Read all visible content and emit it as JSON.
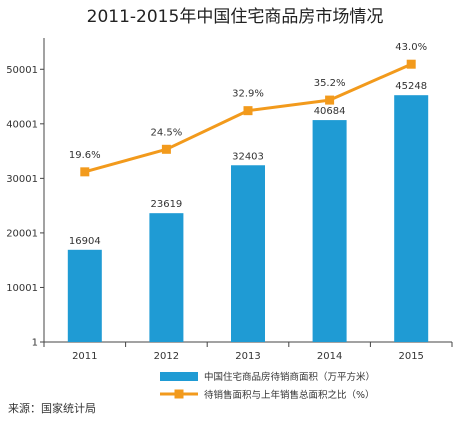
{
  "chart_data": {
    "type": "bar",
    "title": "2011-2015年中国住宅商品房市场情况",
    "categories": [
      "2011",
      "2012",
      "2013",
      "2014",
      "2015"
    ],
    "y_ticks": [
      "1",
      "10001",
      "20001",
      "30001",
      "40001",
      "50001"
    ],
    "ylim": [
      1,
      55001
    ],
    "grid": false,
    "legend_position": "bottom",
    "series": [
      {
        "name": "中国住宅商品房待销商面积（万平方米）",
        "type": "bar",
        "axis": "left",
        "color": "#1f9bd4",
        "values": [
          16904,
          23619,
          32403,
          40684,
          45248
        ],
        "labels": [
          "16904",
          "23619",
          "32403",
          "40684",
          "45248"
        ]
      },
      {
        "name": "待销售面积与上年销售总面积之比（%）",
        "type": "line",
        "axis": "right",
        "color": "#f29a1c",
        "values": [
          19.6,
          24.5,
          32.9,
          35.2,
          43.0
        ],
        "labels": [
          "19.6%",
          "24.5%",
          "32.9%",
          "35.2%",
          "43.0%"
        ]
      }
    ]
  },
  "source": "来源：国家统计局"
}
